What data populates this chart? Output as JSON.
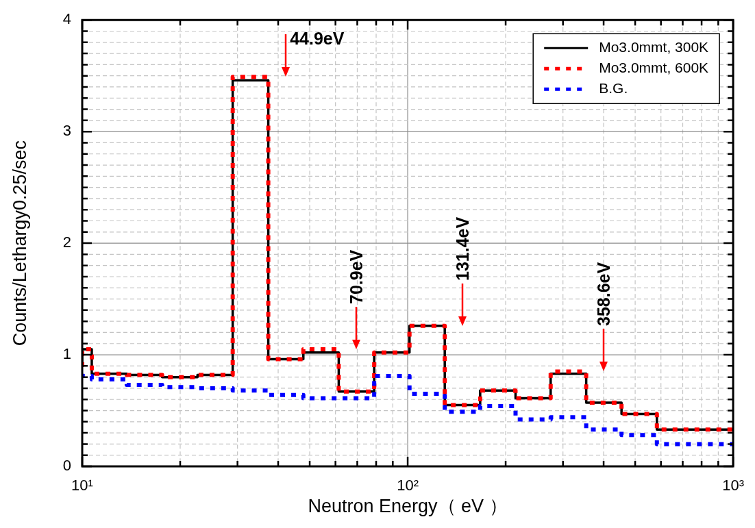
{
  "chart_data": {
    "type": "step",
    "xlabel": "Neutron Energy（ eV ）",
    "ylabel": "Counts/Lethargy0.25/sec",
    "x": [
      10,
      10.7,
      13.7,
      17.6,
      22.6,
      29.0,
      37.3,
      47.8,
      61.4,
      78.9,
      101.3,
      130,
      167,
      214.5,
      275,
      353.6,
      454,
      583,
      748,
      1000
    ],
    "series": [
      {
        "name": "Mo3.0mmt, 300K",
        "color": "#000000",
        "line_style": "solid",
        "values": [
          0.89,
          1.05,
          0.83,
          0.82,
          0.8,
          0.82,
          3.46,
          0.96,
          1.02,
          0.67,
          1.02,
          1.26,
          0.55,
          0.68,
          0.61,
          0.83,
          0.57,
          0.47,
          0.33,
          0.33
        ]
      },
      {
        "name": "Mo3.0mmt, 600K",
        "color": "#ff0000",
        "line_style": "dotted",
        "values": [
          0.89,
          1.05,
          0.83,
          0.82,
          0.8,
          0.82,
          3.49,
          0.96,
          1.05,
          0.67,
          1.02,
          1.26,
          0.55,
          0.68,
          0.61,
          0.85,
          0.57,
          0.47,
          0.33,
          0.33
        ]
      },
      {
        "name": "B.G.",
        "color": "#0000ff",
        "line_style": "dotted",
        "values": [
          0.83,
          0.81,
          0.78,
          0.73,
          0.71,
          0.7,
          0.68,
          0.64,
          0.61,
          0.61,
          0.81,
          0.65,
          0.49,
          0.54,
          0.42,
          0.44,
          0.33,
          0.28,
          0.2,
          0.2
        ]
      }
    ],
    "log": "x",
    "xlim": [
      10,
      1000
    ],
    "xticks": [
      {
        "value": 10,
        "label": "10¹"
      },
      {
        "value": 20,
        "label": null
      },
      {
        "value": 30,
        "label": null
      },
      {
        "value": 40,
        "label": null
      },
      {
        "value": 50,
        "label": null
      },
      {
        "value": 60,
        "label": null
      },
      {
        "value": 70,
        "label": null
      },
      {
        "value": 80,
        "label": null
      },
      {
        "value": 90,
        "label": null
      },
      {
        "value": 100,
        "label": "10²"
      },
      {
        "value": 200,
        "label": null
      },
      {
        "value": 300,
        "label": null
      },
      {
        "value": 400,
        "label": null
      },
      {
        "value": 500,
        "label": null
      },
      {
        "value": 600,
        "label": null
      },
      {
        "value": 700,
        "label": null
      },
      {
        "value": 800,
        "label": null
      },
      {
        "value": 900,
        "label": null
      },
      {
        "value": 1000,
        "label": "10³"
      }
    ],
    "ylim": [
      0,
      4
    ],
    "yticks": [
      0,
      {
        "value": 0.1,
        "label": null
      },
      {
        "value": 0.2,
        "label": null
      },
      {
        "value": 0.3,
        "label": null
      },
      {
        "value": 0.4,
        "label": null
      },
      {
        "value": 0.5,
        "label": null
      },
      {
        "value": 0.6,
        "label": null
      },
      {
        "value": 0.7,
        "label": null
      },
      {
        "value": 0.8,
        "label": null
      },
      {
        "value": 0.9,
        "label": null
      },
      1,
      {
        "value": 1.1,
        "label": null
      },
      {
        "value": 1.2,
        "label": null
      },
      {
        "value": 1.3,
        "label": null
      },
      {
        "value": 1.4,
        "label": null
      },
      {
        "value": 1.5,
        "label": null
      },
      {
        "value": 1.6,
        "label": null
      },
      {
        "value": 1.7,
        "label": null
      },
      {
        "value": 1.8,
        "label": null
      },
      {
        "value": 1.9,
        "label": null
      },
      2,
      {
        "value": 2.1,
        "label": null
      },
      {
        "value": 2.2,
        "label": null
      },
      {
        "value": 2.3,
        "label": null
      },
      {
        "value": 2.4,
        "label": null
      },
      {
        "value": 2.5,
        "label": null
      },
      {
        "value": 2.6,
        "label": null
      },
      {
        "value": 2.7,
        "label": null
      },
      {
        "value": 2.8,
        "label": null
      },
      {
        "value": 2.9,
        "label": null
      },
      3,
      {
        "value": 3.1,
        "label": null
      },
      {
        "value": 3.2,
        "label": null
      },
      {
        "value": 3.3,
        "label": null
      },
      {
        "value": 3.4,
        "label": null
      },
      {
        "value": 3.5,
        "label": null
      },
      {
        "value": 3.6,
        "label": null
      },
      {
        "value": 3.7,
        "label": null
      },
      {
        "value": 3.8,
        "label": null
      },
      {
        "value": 3.9,
        "label": null
      },
      4
    ],
    "grid": true,
    "legend": "top right",
    "annotations": [
      {
        "text": "44.9eV",
        "x": 37.3,
        "y": 3.49
      },
      {
        "text": "70.9eV",
        "x": 61.4,
        "y": 1.05
      },
      {
        "text": "131.4eV",
        "x": 130,
        "y": 1.26
      },
      {
        "text": "358.6eV",
        "x": 353.6,
        "y": 0.85
      }
    ]
  }
}
